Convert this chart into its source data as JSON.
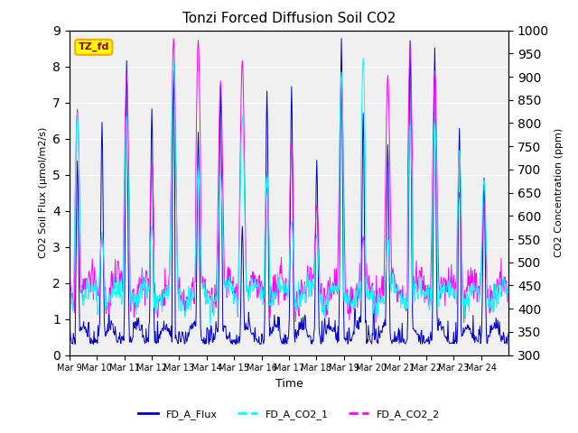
{
  "title": "Tonzi Forced Diffusion Soil CO2",
  "xlabel": "Time",
  "ylabel_left": "CO2 Soil Flux (μmol/m2/s)",
  "ylabel_right": "CO2 Concentration (ppm)",
  "ylim_left": [
    0.0,
    9.0
  ],
  "ylim_right": [
    300,
    1000
  ],
  "yticks_left": [
    0.0,
    1.0,
    2.0,
    3.0,
    4.0,
    5.0,
    6.0,
    7.0,
    8.0,
    9.0
  ],
  "yticks_right": [
    300,
    350,
    400,
    450,
    500,
    550,
    600,
    650,
    700,
    750,
    800,
    850,
    900,
    950,
    1000
  ],
  "xtick_labels": [
    "Mar 9",
    "Mar 10",
    "Mar 11",
    "Mar 12",
    "Mar 13",
    "Mar 14",
    "Mar 15",
    "Mar 16",
    "Mar 17",
    "Mar 18",
    "Mar 19",
    "Mar 20",
    "Mar 21",
    "Mar 22",
    "Mar 23",
    "Mar 24"
  ],
  "legend_label": "TZ_fd",
  "series_labels": [
    "FD_A_Flux",
    "FD_A_CO2_1",
    "FD_A_CO2_2"
  ],
  "colors": {
    "FD_A_Flux": "#0000cc",
    "FD_A_CO2_1": "#00ffff",
    "FD_A_CO2_2": "#ff00ff"
  },
  "background_color": "#ffffff",
  "plot_bg_color": "#f0f0f0",
  "grid_color": "#ffffff",
  "n_days": 16,
  "points_per_day": 48,
  "seed": 42
}
